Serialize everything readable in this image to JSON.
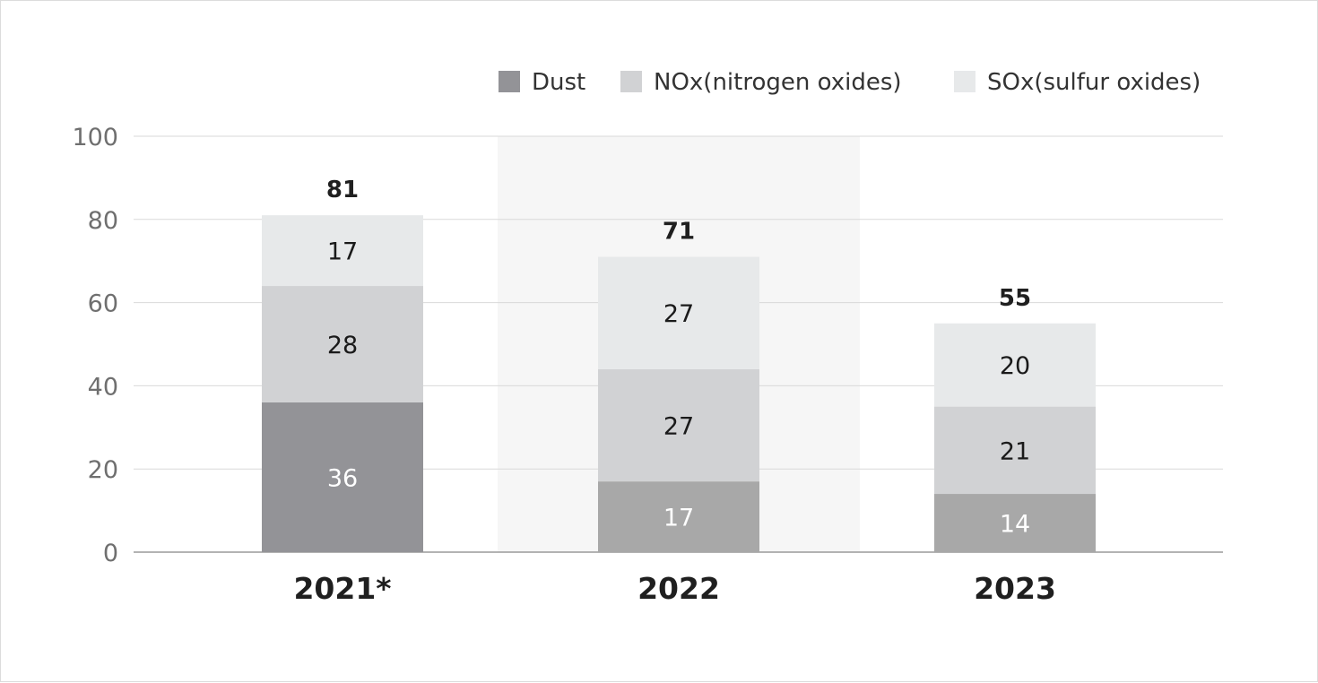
{
  "chart_data": {
    "type": "bar",
    "stacked": true,
    "categories": [
      "2021*",
      "2022",
      "2023"
    ],
    "series": [
      {
        "name": "Dust",
        "values": [
          36,
          17,
          14
        ]
      },
      {
        "name": "NOx(nitrogen oxides)",
        "values": [
          28,
          27,
          21
        ]
      },
      {
        "name": "SOx(sulfur oxides)",
        "values": [
          17,
          27,
          20
        ]
      }
    ],
    "totals": [
      "81",
      "71",
      "55"
    ],
    "ylim": [
      0,
      100
    ],
    "yticks": [
      0,
      20,
      40,
      60,
      80,
      100
    ],
    "grid": true,
    "legend_position": "top-right",
    "highlighted_category": "2022",
    "colors": {
      "dust_first": "#939397",
      "dust": "#a8a8a8",
      "nox": "#d1d2d4",
      "sox": "#e7e9ea",
      "highlight_band": "#f6f6f6",
      "grid": "#d9d9d9",
      "axis": "#9a9a9a"
    }
  }
}
